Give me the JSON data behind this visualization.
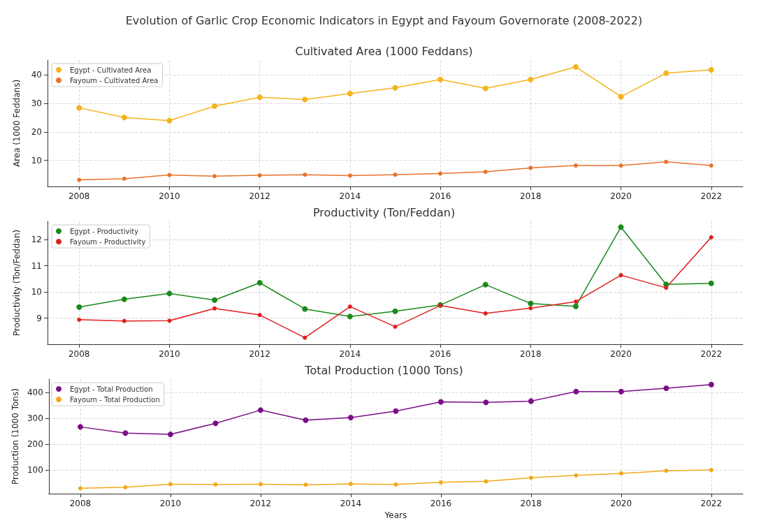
{
  "chart_data": [
    {
      "type": "line",
      "title": "Evolution of Garlic Crop Economic Indicators in Egypt and Fayoum Governorate (2008-2022)",
      "subtitle": "Cultivated Area (1000 Feddans)",
      "ylabel": "Area (1000 Feddans)",
      "x": [
        2008,
        2009,
        2010,
        2011,
        2012,
        2013,
        2014,
        2015,
        2016,
        2017,
        2018,
        2019,
        2020,
        2021,
        2022
      ],
      "series": [
        {
          "name": "Egypt - Cultivated Area",
          "color": "#f4b41a",
          "values": [
            28.4,
            25.0,
            23.9,
            29.0,
            32.1,
            31.3,
            33.4,
            35.4,
            38.3,
            35.2,
            38.3,
            42.7,
            32.3,
            40.5,
            41.7
          ]
        },
        {
          "name": "Fayoum - Cultivated Area",
          "color": "#e8732a",
          "values": [
            3.2,
            3.6,
            4.9,
            4.5,
            4.8,
            5.0,
            4.7,
            5.0,
            5.4,
            6.0,
            7.4,
            8.2,
            8.2,
            9.5,
            8.2
          ]
        }
      ],
      "xlim": [
        2007.3,
        2022.7
      ],
      "xticks": [
        2008,
        2010,
        2012,
        2014,
        2016,
        2018,
        2020,
        2022
      ],
      "ylim": [
        0.9,
        45.1
      ],
      "yticks": [
        10,
        20,
        30,
        40
      ],
      "grid": true,
      "legend": "top left",
      "marker": "circle",
      "line_style": "solid"
    },
    {
      "type": "line",
      "title": "Productivity (Ton/Feddan)",
      "ylabel": "Productivity (Ton/Feddan)",
      "x": [
        2008,
        2009,
        2010,
        2011,
        2012,
        2013,
        2014,
        2015,
        2016,
        2017,
        2018,
        2019,
        2020,
        2021,
        2022
      ],
      "series": [
        {
          "name": "Egypt - Productivity",
          "color": "#1a8a1a",
          "values": [
            9.42,
            9.72,
            9.94,
            9.69,
            10.35,
            9.35,
            9.06,
            9.26,
            9.5,
            10.28,
            9.56,
            9.45,
            12.48,
            10.29,
            10.33
          ]
        },
        {
          "name": "Fayoum - Productivity",
          "color": "#e0201e",
          "values": [
            8.94,
            8.89,
            8.9,
            9.37,
            9.12,
            8.25,
            9.44,
            8.67,
            9.48,
            9.18,
            9.38,
            9.63,
            10.64,
            10.16,
            12.09
          ]
        }
      ],
      "xlim": [
        2007.3,
        2022.7
      ],
      "xticks": [
        2008,
        2010,
        2012,
        2014,
        2016,
        2018,
        2020,
        2022
      ],
      "ylim": [
        8.0,
        12.7
      ],
      "yticks": [
        9,
        10,
        11,
        12
      ],
      "grid": true,
      "legend": "top left",
      "marker": "circle",
      "line_style": "solid"
    },
    {
      "type": "line",
      "title": "Total Production (1000 Tons)",
      "xlabel": "Years",
      "ylabel": "Production (1000 Tons)",
      "x": [
        2008,
        2009,
        2010,
        2011,
        2012,
        2013,
        2014,
        2015,
        2016,
        2017,
        2018,
        2019,
        2020,
        2021,
        2022
      ],
      "series": [
        {
          "name": "Egypt - Total Production",
          "color": "#7b0f87",
          "values": [
            267,
            243,
            238,
            281,
            332,
            293,
            303,
            328,
            364,
            362,
            367,
            404,
            404,
            417,
            431
          ]
        },
        {
          "name": "Fayoum - Total Production",
          "color": "#f2a81c",
          "values": [
            29,
            33,
            45,
            44,
            45,
            43,
            46,
            44,
            52,
            56,
            70,
            79,
            87,
            97,
            100
          ]
        }
      ],
      "xlim": [
        2007.3,
        2022.7
      ],
      "xticks": [
        2008,
        2010,
        2012,
        2014,
        2016,
        2018,
        2020,
        2022
      ],
      "ylim": [
        8,
        452
      ],
      "yticks": [
        100,
        200,
        300,
        400
      ],
      "grid": true,
      "legend": "top left",
      "marker": "circle",
      "line_style": "solid"
    }
  ]
}
